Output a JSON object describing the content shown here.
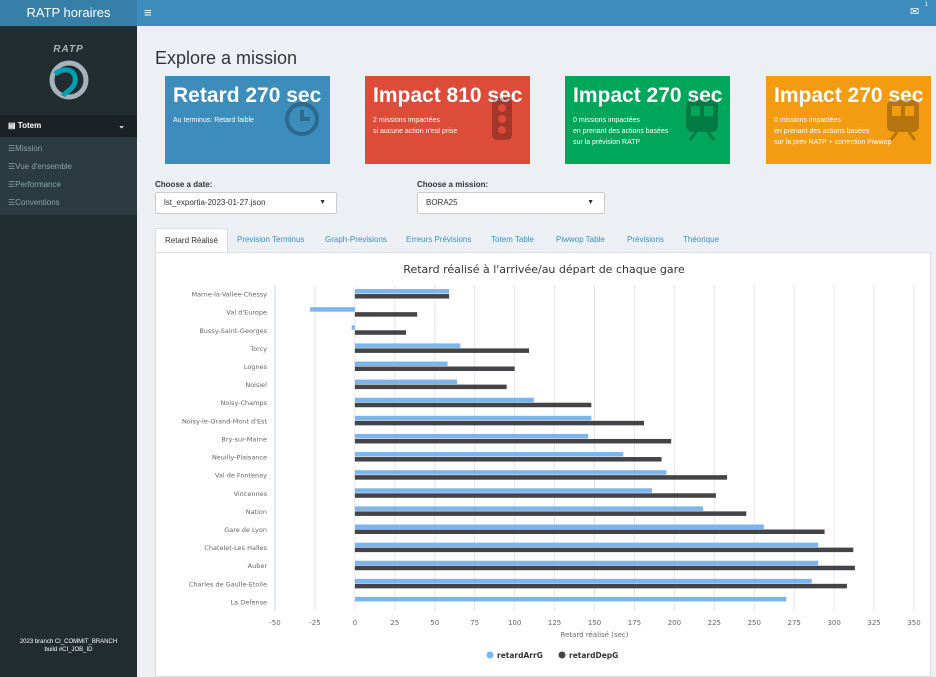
{
  "header": {
    "brand": "RATP horaires",
    "menu_icon": "hamburger-icon",
    "mail_icon": "envelope-icon",
    "mail_count": "1"
  },
  "sidebar": {
    "logo_text": "RATP",
    "section": "Totem",
    "items": [
      {
        "label": "Mission",
        "icon": "list-icon"
      },
      {
        "label": "Vue d'ensemble",
        "icon": "list-icon"
      },
      {
        "label": "Performance",
        "icon": "list-icon"
      },
      {
        "label": "Conventions",
        "icon": "list-icon"
      }
    ],
    "footer_line1": "2023 branch CI_COMMIT_BRANCH",
    "footer_line2": "build #CI_JOB_ID"
  },
  "main": {
    "title": "Explore a mission",
    "boxes": [
      {
        "value": "Retard 270 sec",
        "desc1": "Au terminus: Retard faible",
        "desc2": "",
        "desc3": "",
        "color": "#3c8dbc",
        "icon": "clock-icon"
      },
      {
        "value": "Impact 810 sec",
        "desc1": "2 missions impactées",
        "desc2": "si aucune action n'est prise",
        "desc3": "",
        "color": "#dd4b39",
        "icon": "traffic-light-icon"
      },
      {
        "value": "Impact 270 sec",
        "desc1": "0 missions impactées",
        "desc2": "en prenant des actions basées",
        "desc3": "sur la prévision RATP",
        "color": "#00a65a",
        "icon": "train-icon"
      },
      {
        "value": "Impact 270 sec",
        "desc1": "0 missions impactées",
        "desc2": "en prenant des actions basées",
        "desc3": "sur la prev RATP + correction Piwwop",
        "color": "#f39c12",
        "icon": "train-icon"
      }
    ],
    "date_label": "Choose a date:",
    "date_value": "lst_exportia-2023-01-27.json",
    "mission_label": "Choose a mission:",
    "mission_value": "BORA25",
    "tabs": [
      "Retard Réalisé",
      "Prevision Terminus",
      "Graph-Previsions",
      "Erreurs Prévisions",
      "Totem Table",
      "Piwwop Table",
      "Prévisions",
      "Théorique"
    ]
  },
  "chart_data": {
    "type": "bar",
    "orientation": "horizontal",
    "title": "Retard réalisé à l'arrivée/au départ de chaque gare",
    "xlabel": "Retard réalisé (sec)",
    "ylabel": "",
    "xlim": [
      -50,
      350
    ],
    "xticks": [
      -50,
      -25,
      0,
      25,
      50,
      75,
      100,
      125,
      150,
      175,
      200,
      225,
      250,
      275,
      300,
      325,
      350
    ],
    "grid": true,
    "legend": "bottom",
    "categories": [
      "Marne-la-Vallee-Chessy",
      "Val d'Europe",
      "Bussy-Saint-Georges",
      "Torcy",
      "Lognes",
      "Noisiel",
      "Noisy-Champs",
      "Noisy-le-Grand-Mont d'Est",
      "Bry-sur-Marne",
      "Neuilly-Plaisance",
      "Val de Fontenay",
      "Vincennes",
      "Nation",
      "Gare de Lyon",
      "Chatelet-Les Halles",
      "Auber",
      "Charles de Gaulle-Etoile",
      "La Defense"
    ],
    "series": [
      {
        "name": "retardArrG",
        "color": "#7cb5ec",
        "values": [
          59,
          -28,
          -2,
          66,
          58,
          64,
          112,
          148,
          146,
          168,
          195,
          186,
          218,
          256,
          290,
          290,
          286,
          270
        ]
      },
      {
        "name": "retardDepG",
        "color": "#434348",
        "values": [
          59,
          39,
          32,
          109,
          100,
          95,
          148,
          181,
          198,
          192,
          233,
          226,
          245,
          294,
          312,
          313,
          308,
          null
        ]
      }
    ]
  }
}
